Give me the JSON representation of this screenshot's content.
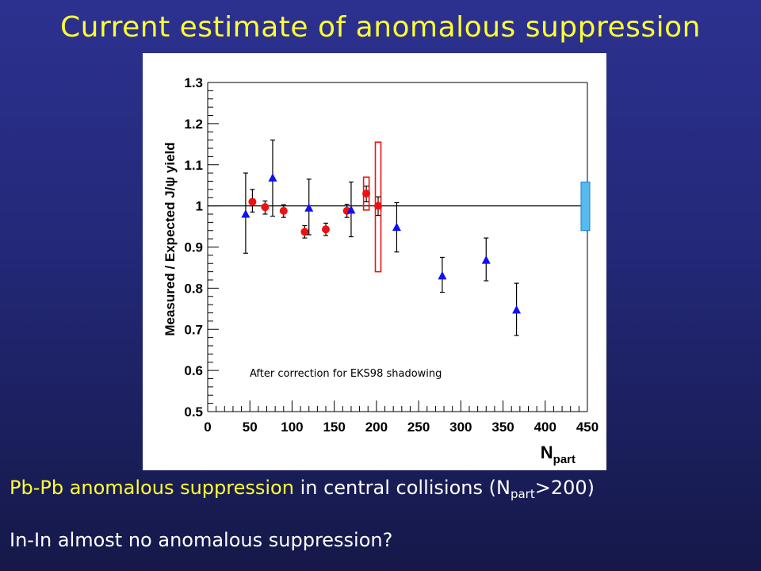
{
  "slide": {
    "title": "Current estimate of anomalous suppression",
    "caption1": {
      "highlight": "Pb-Pb anomalous suppression",
      "rest_a": " in central collisions (N",
      "sub": "part",
      "rest_b": ">200)"
    },
    "caption2": "In-In almost no anomalous suppression?"
  },
  "chart_data": {
    "type": "scatter",
    "title": "",
    "xlabel": "N",
    "xlabel_sub": "part",
    "ylabel": "Measured / Expected J/ψ yield",
    "xlim": [
      0,
      450
    ],
    "ylim": [
      0.5,
      1.3
    ],
    "x_ticks": [
      "0",
      "50",
      "100",
      "150",
      "200",
      "250",
      "300",
      "350",
      "400",
      "450"
    ],
    "y_ticks": [
      "0.5",
      "0.6",
      "0.7",
      "0.8",
      "0.9",
      "1",
      "1.1",
      "1.2",
      "1.3"
    ],
    "annotation": "After correction for EKS98 shadowing",
    "reference_line": 1.0,
    "series": [
      {
        "marker": "circle",
        "color": "#ee1111",
        "points": [
          {
            "x": 53,
            "y": 1.01,
            "lo": 0.985,
            "hi": 1.04
          },
          {
            "x": 68,
            "y": 0.997,
            "lo": 0.98,
            "hi": 1.012
          },
          {
            "x": 90,
            "y": 0.988,
            "lo": 0.972,
            "hi": 1.003
          },
          {
            "x": 115,
            "y": 0.937,
            "lo": 0.922,
            "hi": 0.952
          },
          {
            "x": 140,
            "y": 0.943,
            "lo": 0.928,
            "hi": 0.958
          },
          {
            "x": 165,
            "y": 0.988,
            "lo": 0.972,
            "hi": 1.004
          },
          {
            "x": 188,
            "y": 1.03,
            "lo": 1.01,
            "hi": 1.048
          },
          {
            "x": 202,
            "y": 1.0,
            "lo": 0.977,
            "hi": 1.022
          }
        ]
      },
      {
        "marker": "triangle",
        "color": "#1111ee",
        "points": [
          {
            "x": 45,
            "y": 0.98,
            "lo": 0.885,
            "hi": 1.08
          },
          {
            "x": 77,
            "y": 1.068,
            "lo": 0.975,
            "hi": 1.16
          },
          {
            "x": 120,
            "y": 0.995,
            "lo": 0.93,
            "hi": 1.065
          },
          {
            "x": 170,
            "y": 0.99,
            "lo": 0.925,
            "hi": 1.058
          },
          {
            "x": 224,
            "y": 0.948,
            "lo": 0.888,
            "hi": 1.008
          },
          {
            "x": 278,
            "y": 0.83,
            "lo": 0.79,
            "hi": 0.875
          },
          {
            "x": 330,
            "y": 0.868,
            "lo": 0.818,
            "hi": 0.922
          },
          {
            "x": 366,
            "y": 0.747,
            "lo": 0.685,
            "hi": 0.812
          }
        ]
      }
    ],
    "systematic_boxes": [
      {
        "x": 188,
        "lo": 0.99,
        "hi": 1.07,
        "color": "#ee1111"
      },
      {
        "x": 202,
        "lo": 0.84,
        "hi": 1.155,
        "color": "#ee1111"
      }
    ],
    "global_uncertainty_band": {
      "lo": 0.94,
      "hi": 1.058,
      "color": "#55bbee"
    }
  }
}
